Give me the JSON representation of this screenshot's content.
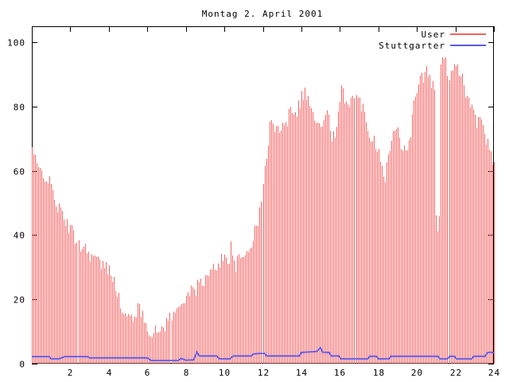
{
  "chart_data": {
    "type": "bar",
    "title": "Montag 2. April 2001",
    "xlabel": "",
    "ylabel": "",
    "x_axis": {
      "min": 0,
      "max": 24,
      "ticks": [
        2,
        4,
        6,
        8,
        10,
        12,
        14,
        16,
        18,
        20,
        22,
        24
      ],
      "unit": "hour"
    },
    "y_axis": {
      "min": 0,
      "max": 105,
      "ticks": [
        0,
        20,
        40,
        60,
        80,
        100
      ]
    },
    "grid": "off",
    "legend_position": "top-right",
    "render_interval_minutes": 5,
    "render_jitter": 2.3,
    "series": [
      {
        "name": "User",
        "style": "impulses",
        "color": "#f26464",
        "points": [
          [
            0.0,
            67
          ],
          [
            0.17,
            63
          ],
          [
            0.33,
            60
          ],
          [
            0.5,
            60
          ],
          [
            0.75,
            58
          ],
          [
            1.0,
            55
          ],
          [
            1.25,
            50
          ],
          [
            1.5,
            47
          ],
          [
            1.75,
            44
          ],
          [
            2.0,
            42
          ],
          [
            2.25,
            39
          ],
          [
            2.5,
            37
          ],
          [
            2.75,
            36
          ],
          [
            3.0,
            34
          ],
          [
            3.25,
            33
          ],
          [
            3.5,
            31
          ],
          [
            3.75,
            30
          ],
          [
            4.0,
            29
          ],
          [
            4.25,
            27
          ],
          [
            4.5,
            20
          ],
          [
            4.75,
            15
          ],
          [
            5.0,
            14
          ],
          [
            5.25,
            15
          ],
          [
            5.5,
            17
          ],
          [
            5.75,
            15
          ],
          [
            6.0,
            12
          ],
          [
            6.25,
            9
          ],
          [
            6.5,
            10
          ],
          [
            6.75,
            11
          ],
          [
            7.0,
            13
          ],
          [
            7.25,
            15
          ],
          [
            7.5,
            16
          ],
          [
            7.75,
            19
          ],
          [
            8.0,
            22
          ],
          [
            8.25,
            22
          ],
          [
            8.5,
            23
          ],
          [
            8.75,
            26
          ],
          [
            9.0,
            26
          ],
          [
            9.25,
            28
          ],
          [
            9.5,
            30
          ],
          [
            9.75,
            32
          ],
          [
            10.0,
            33
          ],
          [
            10.25,
            33
          ],
          [
            10.33,
            38
          ],
          [
            10.5,
            30
          ],
          [
            10.75,
            32
          ],
          [
            11.0,
            33
          ],
          [
            11.25,
            36
          ],
          [
            11.5,
            39
          ],
          [
            11.75,
            44
          ],
          [
            12.0,
            55
          ],
          [
            12.17,
            65
          ],
          [
            12.33,
            75
          ],
          [
            12.5,
            74
          ],
          [
            12.75,
            72
          ],
          [
            13.0,
            76
          ],
          [
            13.25,
            75
          ],
          [
            13.42,
            81
          ],
          [
            13.58,
            79
          ],
          [
            13.75,
            79
          ],
          [
            14.0,
            83
          ],
          [
            14.17,
            85
          ],
          [
            14.33,
            82
          ],
          [
            14.5,
            80
          ],
          [
            14.75,
            74
          ],
          [
            15.0,
            74
          ],
          [
            15.25,
            76
          ],
          [
            15.42,
            78
          ],
          [
            15.58,
            71
          ],
          [
            15.75,
            70
          ],
          [
            16.0,
            80
          ],
          [
            16.08,
            85
          ],
          [
            16.25,
            83
          ],
          [
            16.42,
            81
          ],
          [
            16.58,
            83
          ],
          [
            16.75,
            82
          ],
          [
            17.0,
            82
          ],
          [
            17.25,
            78
          ],
          [
            17.5,
            72
          ],
          [
            17.75,
            70
          ],
          [
            18.0,
            66
          ],
          [
            18.17,
            63
          ],
          [
            18.33,
            58
          ],
          [
            18.5,
            64
          ],
          [
            18.67,
            70
          ],
          [
            18.83,
            73
          ],
          [
            19.0,
            72
          ],
          [
            19.17,
            67
          ],
          [
            19.33,
            70
          ],
          [
            19.5,
            67
          ],
          [
            19.67,
            72
          ],
          [
            19.83,
            81
          ],
          [
            20.0,
            86
          ],
          [
            20.17,
            90
          ],
          [
            20.33,
            89
          ],
          [
            20.5,
            91
          ],
          [
            20.67,
            88
          ],
          [
            20.83,
            87
          ],
          [
            20.92,
            87
          ],
          [
            21.0,
            44
          ],
          [
            21.08,
            41
          ],
          [
            21.17,
            45
          ],
          [
            21.25,
            94
          ],
          [
            21.33,
            95
          ],
          [
            21.5,
            93
          ],
          [
            21.67,
            90
          ],
          [
            21.83,
            92
          ],
          [
            21.92,
            94
          ],
          [
            22.0,
            94
          ],
          [
            22.17,
            91
          ],
          [
            22.33,
            90
          ],
          [
            22.5,
            84
          ],
          [
            22.67,
            83
          ],
          [
            22.83,
            80
          ],
          [
            23.0,
            76
          ],
          [
            23.17,
            75
          ],
          [
            23.33,
            75
          ],
          [
            23.5,
            72
          ],
          [
            23.67,
            68
          ],
          [
            23.83,
            64
          ],
          [
            24.0,
            62
          ]
        ]
      },
      {
        "name": "Stuttgarter",
        "style": "line",
        "color": "#5a5aee",
        "points": [
          [
            0.0,
            2.2
          ],
          [
            0.9,
            2.2
          ],
          [
            1.0,
            1.5
          ],
          [
            1.4,
            1.5
          ],
          [
            1.5,
            1.7
          ],
          [
            1.7,
            2.2
          ],
          [
            2.9,
            2.2
          ],
          [
            3.0,
            1.8
          ],
          [
            6.0,
            1.8
          ],
          [
            6.2,
            1.0
          ],
          [
            7.6,
            1.0
          ],
          [
            7.75,
            1.6
          ],
          [
            8.0,
            1.1
          ],
          [
            8.4,
            1.2
          ],
          [
            8.58,
            3.6
          ],
          [
            8.7,
            2.4
          ],
          [
            9.6,
            2.4
          ],
          [
            9.75,
            1.5
          ],
          [
            10.3,
            1.5
          ],
          [
            10.45,
            2.4
          ],
          [
            11.4,
            2.4
          ],
          [
            11.5,
            3.0
          ],
          [
            11.8,
            3.2
          ],
          [
            12.1,
            3.2
          ],
          [
            12.2,
            2.4
          ],
          [
            13.9,
            2.4
          ],
          [
            14.0,
            3.5
          ],
          [
            14.8,
            3.8
          ],
          [
            15.0,
            5.0
          ],
          [
            15.1,
            3.6
          ],
          [
            15.45,
            3.5
          ],
          [
            15.55,
            2.4
          ],
          [
            15.95,
            2.4
          ],
          [
            16.05,
            1.5
          ],
          [
            17.45,
            1.5
          ],
          [
            17.55,
            2.3
          ],
          [
            17.9,
            2.3
          ],
          [
            18.0,
            1.5
          ],
          [
            18.55,
            1.5
          ],
          [
            18.65,
            2.3
          ],
          [
            21.1,
            2.3
          ],
          [
            21.2,
            1.5
          ],
          [
            21.6,
            1.5
          ],
          [
            21.7,
            2.3
          ],
          [
            21.95,
            2.3
          ],
          [
            22.05,
            1.5
          ],
          [
            22.85,
            1.5
          ],
          [
            22.95,
            2.3
          ],
          [
            23.55,
            2.3
          ],
          [
            23.65,
            3.4
          ],
          [
            23.8,
            3.6
          ],
          [
            24.0,
            3.4
          ]
        ]
      }
    ]
  },
  "colors": {
    "background": "#ffffff",
    "axis": "#000000",
    "text": "#000000",
    "user_red": "#f26464",
    "stuttgarter_blue": "#5a5aee"
  }
}
